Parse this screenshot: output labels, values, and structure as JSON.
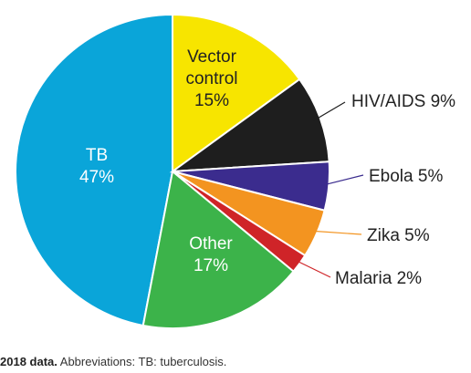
{
  "chart_data": {
    "type": "pie",
    "title": "",
    "slices": [
      {
        "label": "TB",
        "value": 47,
        "value_label": "47%",
        "color": "#0aa5d9",
        "label_pos": "inside",
        "label_lines": [
          "TB",
          "47%"
        ],
        "text_color": "#ffffff"
      },
      {
        "label": "Vector control",
        "value": 15,
        "value_label": "15%",
        "color": "#f7e500",
        "label_pos": "inside",
        "label_lines": [
          "Vector",
          "control",
          "15%"
        ],
        "text_color": "#222222"
      },
      {
        "label": "HIV/AIDS",
        "value": 9,
        "value_label": "9%",
        "color": "#1e1e1e",
        "label_pos": "outside",
        "label_lines": [
          "HIV/AIDS 9%"
        ],
        "text_color": "#222222",
        "line_color": "#1e1e1e"
      },
      {
        "label": "Ebola",
        "value": 5,
        "value_label": "5%",
        "color": "#3b2c8e",
        "label_pos": "outside",
        "label_lines": [
          "Ebola 5%"
        ],
        "text_color": "#222222",
        "line_color": "#3b2c8e"
      },
      {
        "label": "Zika",
        "value": 5,
        "value_label": "5%",
        "color": "#f39420",
        "label_pos": "outside",
        "label_lines": [
          "Zika 5%"
        ],
        "text_color": "#222222",
        "line_color": "#f39420"
      },
      {
        "label": "Malaria",
        "value": 2,
        "value_label": "2%",
        "color": "#cf2428",
        "label_pos": "outside",
        "label_lines": [
          "Malaria 2%"
        ],
        "text_color": "#222222",
        "line_color": "#cf2428"
      },
      {
        "label": "Other",
        "value": 17,
        "value_label": "17%",
        "color": "#3cb34a",
        "label_pos": "inside",
        "label_lines": [
          "Other",
          "17%"
        ],
        "text_color": "#ffffff"
      }
    ]
  },
  "caption": {
    "bold": "2018 data.",
    "text": " Abbreviations: TB: tuberculosis."
  }
}
